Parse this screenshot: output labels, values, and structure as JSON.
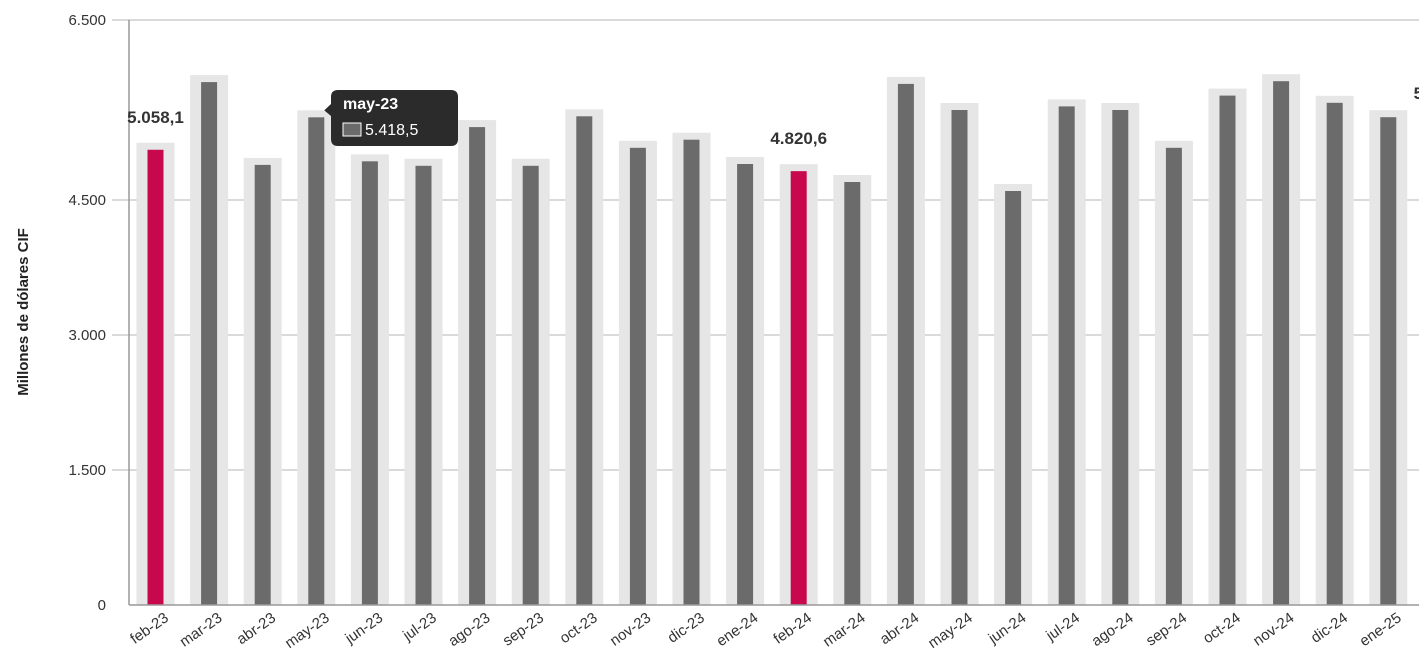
{
  "chart_data": {
    "type": "bar",
    "ylabel": "Millones de dólares CIF",
    "ylim": [
      0,
      6500
    ],
    "yticks": [
      0,
      1500,
      3000,
      4500,
      6500
    ],
    "ytick_labels": [
      "0",
      "1.500",
      "3.000",
      "4.500",
      "6.500"
    ],
    "grid": true,
    "categories": [
      "feb-23",
      "mar-23",
      "abr-23",
      "may-23",
      "jun-23",
      "jul-23",
      "ago-23",
      "sep-23",
      "oct-23",
      "nov-23",
      "dic-23",
      "ene-24",
      "feb-24",
      "mar-24",
      "abr-24",
      "may-24",
      "jun-24",
      "jul-24",
      "ago-24",
      "sep-24",
      "oct-24",
      "nov-24",
      "dic-24",
      "ene-25"
    ],
    "series": [
      {
        "values": [
          5058.1,
          5810,
          4890,
          5418.5,
          4930,
          4880,
          5310,
          4880,
          5430,
          5080,
          5170,
          4900,
          4820.6,
          4700,
          5790,
          5500,
          4600,
          5540,
          5500,
          5080,
          5660,
          5820,
          5580,
          5420
        ]
      }
    ],
    "highlight_color": "#c8084c",
    "bar_color": "#6b6b6b",
    "bar_bg_color": "#e6e6e6",
    "highlighted_categories": [
      "feb-24",
      "feb-23"
    ],
    "data_labels": [
      {
        "category": "feb-23",
        "text": "5.058,1"
      },
      {
        "category": "feb-24",
        "text": "4.820,6"
      },
      {
        "category": "ene-25",
        "text": "5"
      }
    ],
    "tooltip": {
      "category": "may-23",
      "title": "may-23",
      "value": "5.418,5"
    }
  }
}
